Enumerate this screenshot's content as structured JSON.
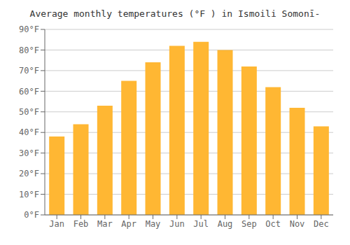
{
  "chart_data": {
    "type": "bar",
    "title": "Average monthly temperatures (°F ) in Ismoili Somonī-",
    "categories": [
      "Jan",
      "Feb",
      "Mar",
      "Apr",
      "May",
      "Jun",
      "Jul",
      "Aug",
      "Sep",
      "Oct",
      "Nov",
      "Dec"
    ],
    "values": [
      38,
      44,
      53,
      65,
      74,
      82,
      84,
      80,
      72,
      62,
      52,
      43
    ],
    "color": "#FFB733",
    "ylim": [
      0,
      90
    ],
    "yticks": [
      {
        "value": 0,
        "label": "0°F"
      },
      {
        "value": 10,
        "label": "10°F"
      },
      {
        "value": 20,
        "label": "20°F"
      },
      {
        "value": 30,
        "label": "30°F"
      },
      {
        "value": 40,
        "label": "40°F"
      },
      {
        "value": 50,
        "label": "50°F"
      },
      {
        "value": 60,
        "label": "60°F"
      },
      {
        "value": 70,
        "label": "70°F"
      },
      {
        "value": 80,
        "label": "80°F"
      },
      {
        "value": 90,
        "label": "90°F"
      }
    ],
    "grid": true
  }
}
